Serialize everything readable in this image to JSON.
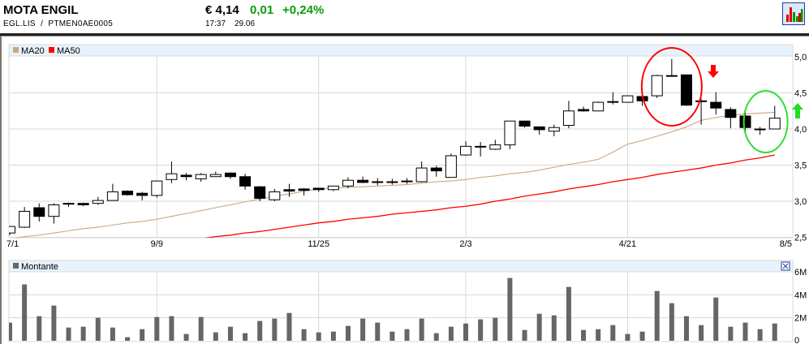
{
  "header": {
    "name": "MOTA ENGIL",
    "ticker": "EGL.LIS",
    "separator": "/",
    "isin": "PTMEN0AE0005",
    "price": "€ 4,14",
    "change": "0,01",
    "change_pct": "+0,24%",
    "time": "17:37",
    "date": "29.06",
    "chart_icon": "bar-chart-icon"
  },
  "colors": {
    "ma20": "#c8a882",
    "ma50": "#ff0000",
    "volume": "#666666",
    "positive": "#0a9a0a",
    "legend_bg": "#e8f2fc"
  },
  "chart_data": [
    {
      "type": "candlestick",
      "legend": [
        "MA20",
        "MA50"
      ],
      "legend_placement": "top-left",
      "ylim": [
        2.5,
        5.0
      ],
      "y_ticks": [
        "5,0",
        "4,5",
        "4,0",
        "3,5",
        "3,0",
        "2,5"
      ],
      "x_ticks": [
        {
          "label": "7/1",
          "candle": 0
        },
        {
          "label": "9/9",
          "candle": 10
        },
        {
          "label": "11/25",
          "candle": 21
        },
        {
          "label": "2/3",
          "candle": 31
        },
        {
          "label": "4/21",
          "candle": 42
        },
        {
          "label": "8/5",
          "candle": 52.7
        }
      ],
      "grid": true,
      "candles": [
        [
          2.56,
          2.65,
          2.53,
          2.65
        ],
        [
          2.64,
          2.92,
          2.63,
          2.86
        ],
        [
          2.91,
          2.97,
          2.72,
          2.79
        ],
        [
          2.79,
          2.97,
          2.69,
          2.95
        ],
        [
          2.96,
          2.98,
          2.92,
          2.97
        ],
        [
          2.97,
          2.98,
          2.93,
          2.95
        ],
        [
          2.97,
          3.06,
          2.95,
          3.01
        ],
        [
          3.01,
          3.24,
          3.01,
          3.13
        ],
        [
          3.14,
          3.15,
          3.08,
          3.09
        ],
        [
          3.11,
          3.13,
          3.01,
          3.08
        ],
        [
          3.08,
          3.28,
          3.05,
          3.28
        ],
        [
          3.3,
          3.55,
          3.25,
          3.38
        ],
        [
          3.36,
          3.39,
          3.29,
          3.34
        ],
        [
          3.31,
          3.39,
          3.27,
          3.37
        ],
        [
          3.34,
          3.41,
          3.34,
          3.37
        ],
        [
          3.39,
          3.4,
          3.31,
          3.34
        ],
        [
          3.34,
          3.38,
          3.16,
          3.21
        ],
        [
          3.2,
          3.21,
          3.0,
          3.04
        ],
        [
          3.02,
          3.17,
          3.0,
          3.13
        ],
        [
          3.16,
          3.24,
          3.06,
          3.14
        ],
        [
          3.17,
          3.18,
          3.08,
          3.15
        ],
        [
          3.18,
          3.18,
          3.13,
          3.16
        ],
        [
          3.16,
          3.21,
          3.14,
          3.21
        ],
        [
          3.21,
          3.33,
          3.18,
          3.29
        ],
        [
          3.29,
          3.34,
          3.25,
          3.26
        ],
        [
          3.27,
          3.32,
          3.22,
          3.27
        ],
        [
          3.27,
          3.31,
          3.23,
          3.27
        ],
        [
          3.28,
          3.32,
          3.24,
          3.28
        ],
        [
          3.27,
          3.55,
          3.26,
          3.46
        ],
        [
          3.46,
          3.49,
          3.34,
          3.42
        ],
        [
          3.33,
          3.66,
          3.33,
          3.63
        ],
        [
          3.64,
          3.83,
          3.63,
          3.76
        ],
        [
          3.76,
          3.82,
          3.62,
          3.76
        ],
        [
          3.72,
          3.85,
          3.71,
          3.78
        ],
        [
          3.78,
          4.11,
          3.72,
          4.11
        ],
        [
          4.11,
          4.11,
          4.02,
          4.04
        ],
        [
          4.03,
          4.03,
          3.92,
          3.99
        ],
        [
          3.97,
          4.06,
          3.9,
          4.02
        ],
        [
          4.05,
          4.39,
          4.01,
          4.25
        ],
        [
          4.27,
          4.31,
          4.24,
          4.25
        ],
        [
          4.25,
          4.38,
          4.25,
          4.37
        ],
        [
          4.38,
          4.51,
          4.34,
          4.38
        ],
        [
          4.37,
          4.46,
          4.37,
          4.46
        ],
        [
          4.45,
          4.52,
          4.32,
          4.39
        ],
        [
          4.46,
          4.75,
          4.43,
          4.74
        ],
        [
          4.74,
          4.97,
          4.74,
          4.74
        ],
        [
          4.75,
          4.75,
          4.32,
          4.33
        ],
        [
          4.39,
          4.42,
          4.06,
          4.38
        ],
        [
          4.37,
          4.51,
          4.2,
          4.29
        ],
        [
          4.27,
          4.3,
          4.01,
          4.16
        ],
        [
          4.18,
          4.28,
          3.97,
          4.02
        ],
        [
          4.0,
          4.03,
          3.92,
          4.0
        ],
        [
          4.0,
          4.32,
          4.0,
          4.15
        ]
      ],
      "candle_fields": [
        "open",
        "high",
        "low",
        "close"
      ],
      "series": [
        {
          "name": "MA20",
          "values": [
            2.48,
            2.51,
            2.53,
            2.56,
            2.59,
            2.62,
            2.64,
            2.67,
            2.7,
            2.72,
            2.75,
            2.79,
            2.83,
            2.87,
            2.91,
            2.95,
            2.99,
            3.03,
            3.07,
            3.1,
            3.14,
            3.17,
            3.18,
            3.19,
            3.2,
            3.21,
            3.22,
            3.23,
            3.25,
            3.27,
            3.28,
            3.3,
            3.33,
            3.35,
            3.38,
            3.4,
            3.43,
            3.47,
            3.51,
            3.54,
            3.58,
            3.68,
            3.79,
            3.84,
            3.9,
            3.96,
            4.03,
            4.12,
            4.16,
            4.19,
            4.21,
            4.22,
            4.23
          ]
        },
        {
          "name": "MA50",
          "values": [
            null,
            null,
            null,
            null,
            null,
            null,
            null,
            2.3,
            2.34,
            2.37,
            2.41,
            2.43,
            2.46,
            2.48,
            2.51,
            2.53,
            2.56,
            2.58,
            2.61,
            2.64,
            2.67,
            2.7,
            2.72,
            2.75,
            2.77,
            2.79,
            2.82,
            2.84,
            2.86,
            2.88,
            2.91,
            2.93,
            2.96,
            3.0,
            3.03,
            3.07,
            3.1,
            3.13,
            3.17,
            3.2,
            3.23,
            3.27,
            3.3,
            3.33,
            3.37,
            3.4,
            3.43,
            3.46,
            3.5,
            3.53,
            3.57,
            3.6,
            3.64
          ]
        }
      ],
      "annotations": [
        {
          "shape": "ellipse",
          "color": "#ff0000",
          "around_candles": [
            44,
            46
          ]
        },
        {
          "shape": "arrow-down",
          "color": "#ff0000",
          "near_candle": 48
        },
        {
          "shape": "ellipse",
          "color": "#33dd33",
          "around_candles": [
            50,
            52
          ]
        },
        {
          "shape": "arrow-up",
          "color": "#33dd33",
          "near_candle": 52
        }
      ]
    },
    {
      "type": "bar",
      "legend": [
        "Montante"
      ],
      "legend_placement": "top-left",
      "ylim": [
        0,
        6000000
      ],
      "y_ticks": [
        "6M",
        "4M",
        "2M",
        "0"
      ],
      "grid": true,
      "values_millions": [
        1.58,
        4.9,
        2.14,
        3.06,
        1.15,
        1.22,
        2.0,
        1.15,
        0.31,
        1.01,
        2.07,
        2.14,
        0.59,
        2.07,
        0.73,
        1.22,
        0.66,
        1.72,
        1.93,
        2.42,
        1.01,
        0.73,
        0.8,
        1.29,
        1.93,
        1.58,
        0.8,
        1.01,
        1.93,
        0.66,
        1.22,
        1.5,
        1.86,
        2.0,
        5.46,
        0.94,
        2.35,
        2.21,
        4.68,
        0.94,
        1.01,
        1.36,
        0.59,
        0.8,
        4.33,
        3.27,
        2.14,
        1.36,
        3.76,
        1.22,
        1.58,
        1.01,
        1.5
      ]
    }
  ]
}
